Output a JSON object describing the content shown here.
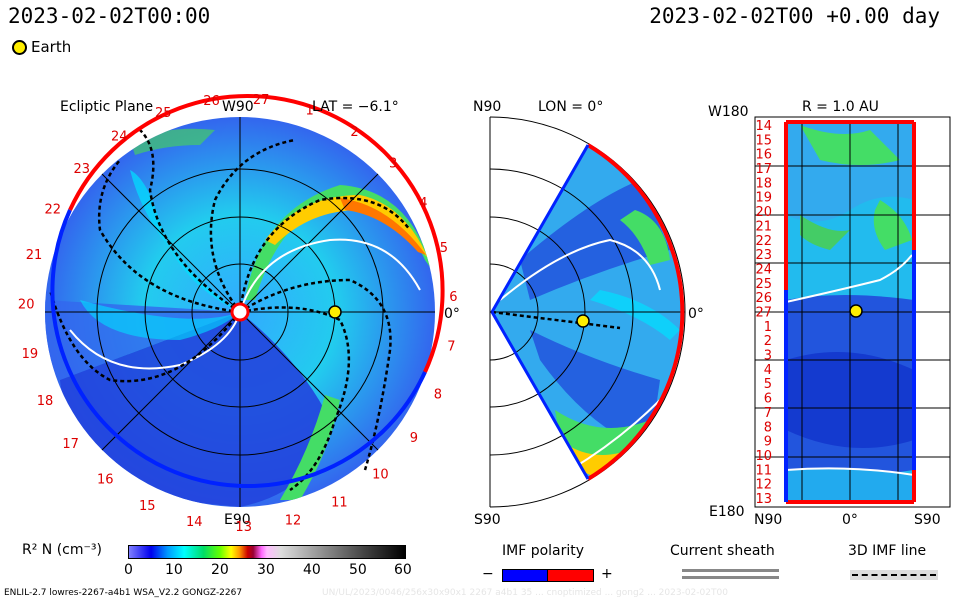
{
  "header": {
    "timestamp": "2023-02-02T00:00",
    "time_offset": "2023-02-02T00 +0.00 day"
  },
  "legend": {
    "earth_label": "Earth"
  },
  "panels": {
    "ecliptic": {
      "title": "Ecliptic Plane",
      "top_label": "W90",
      "lat_label": "LAT = −6.1°",
      "bottom_label": "E90",
      "right_label": "0°",
      "sector_numbers": [
        "19",
        "20",
        "21",
        "22",
        "23",
        "24",
        "25",
        "26",
        "27",
        "1",
        "2",
        "3",
        "4",
        "5",
        "6",
        "7",
        "8",
        "9",
        "10",
        "11",
        "12",
        "13",
        "14",
        "15",
        "16",
        "17",
        "18"
      ]
    },
    "meridional": {
      "top_label": "N90",
      "lon_label": "LON = 0°",
      "bottom_label": "S90",
      "right_label": "0°"
    },
    "radial": {
      "top_left_label": "W180",
      "r_label": "R = 1.0 AU",
      "bottom_left_label": "E180",
      "bottom_labels": [
        "N90",
        "0°",
        "S90"
      ],
      "ytick_labels": [
        "14",
        "15",
        "16",
        "17",
        "18",
        "19",
        "20",
        "21",
        "22",
        "23",
        "24",
        "25",
        "26",
        "27",
        "1",
        "2",
        "3",
        "4",
        "5",
        "6",
        "7",
        "8",
        "9",
        "10",
        "11",
        "12",
        "13"
      ]
    }
  },
  "colorbar": {
    "label": "R² N (cm⁻³)",
    "ticks": [
      "0",
      "10",
      "20",
      "30",
      "40",
      "50",
      "60"
    ]
  },
  "imf": {
    "title": "IMF polarity",
    "minus": "−",
    "plus": "+",
    "neg_color": "#0000ff",
    "pos_color": "#ff0000"
  },
  "sheath": {
    "title": "Current sheath"
  },
  "imfline": {
    "title": "3D IMF line"
  },
  "footer": {
    "model": "ENLIL-2.7 lowres-2267-a4b1 WSA_V2.2 GONGZ-2267",
    "faint": "UN/UL/2023/0046/256x30x90x1 2267 a4b1 35 ... cnoptimized ... gong2 ... 2023-02-02T00"
  }
}
